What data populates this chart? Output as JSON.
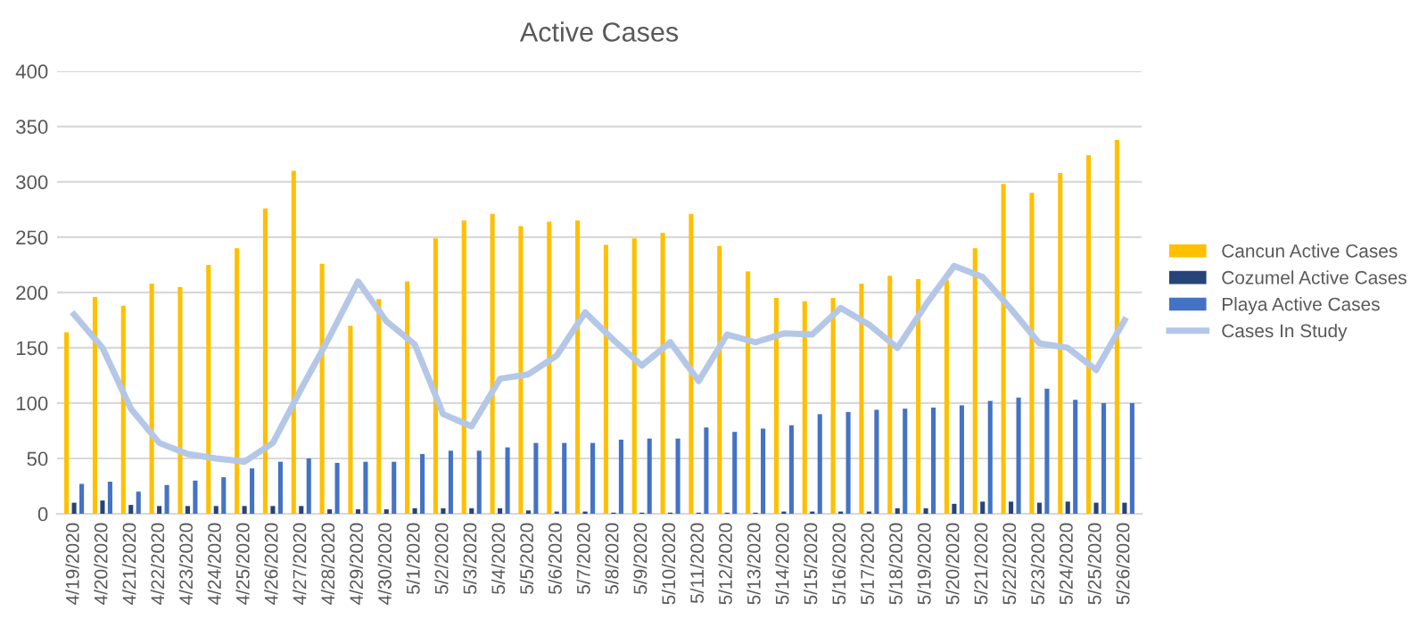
{
  "chart_data": {
    "type": "bar",
    "title": "Active Cases",
    "categories": [
      "4/19/2020",
      "4/20/2020",
      "4/21/2020",
      "4/22/2020",
      "4/23/2020",
      "4/24/2020",
      "4/25/2020",
      "4/26/2020",
      "4/27/2020",
      "4/28/2020",
      "4/29/2020",
      "4/30/2020",
      "5/1/2020",
      "5/2/2020",
      "5/3/2020",
      "5/4/2020",
      "5/5/2020",
      "5/6/2020",
      "5/7/2020",
      "5/8/2020",
      "5/9/2020",
      "5/10/2020",
      "5/11/2020",
      "5/12/2020",
      "5/13/2020",
      "5/14/2020",
      "5/15/2020",
      "5/16/2020",
      "5/17/2020",
      "5/18/2020",
      "5/19/2020",
      "5/20/2020",
      "5/21/2020",
      "5/22/2020",
      "5/23/2020",
      "5/24/2020",
      "5/25/2020",
      "5/26/2020"
    ],
    "series": [
      {
        "name": "Cancun Active Cases",
        "color": "#ffc000",
        "values": [
          164,
          196,
          188,
          208,
          205,
          225,
          240,
          276,
          310,
          226,
          170,
          194,
          210,
          249,
          265,
          271,
          260,
          264,
          265,
          243,
          249,
          254,
          271,
          242,
          219,
          195,
          192,
          195,
          208,
          215,
          212,
          211,
          240,
          298,
          290,
          308,
          324,
          338
        ]
      },
      {
        "name": "Cozumel Active Cases",
        "color": "#264478",
        "values": [
          10,
          12,
          8,
          7,
          7,
          7,
          7,
          7,
          7,
          4,
          4,
          4,
          5,
          5,
          5,
          5,
          3,
          2,
          2,
          1,
          1,
          1,
          1,
          1,
          1,
          2,
          2,
          2,
          2,
          5,
          5,
          9,
          11,
          11,
          10,
          11,
          10,
          10
        ]
      },
      {
        "name": "Playa Active Cases",
        "color": "#4472c4",
        "values": [
          27,
          29,
          20,
          26,
          30,
          33,
          41,
          47,
          50,
          46,
          47,
          47,
          54,
          57,
          57,
          60,
          64,
          64,
          64,
          67,
          68,
          68,
          78,
          74,
          77,
          80,
          90,
          92,
          94,
          95,
          96,
          98,
          102,
          105,
          113,
          103,
          100,
          100
        ]
      },
      {
        "name": "Cases In Study",
        "type": "line",
        "color": "#b4c7e7",
        "values": [
          180,
          150,
          95,
          64,
          54,
          50,
          47,
          64,
          113,
          160,
          210,
          174,
          153,
          90,
          79,
          122,
          126,
          143,
          182,
          157,
          134,
          155,
          120,
          162,
          155,
          163,
          162,
          186,
          171,
          150,
          189,
          224,
          214,
          185,
          154,
          150,
          130,
          175
        ]
      }
    ],
    "ylim": [
      0,
      400
    ],
    "yticks": [
      0,
      50,
      100,
      150,
      200,
      250,
      300,
      350,
      400
    ],
    "grid": "y",
    "legend": "right",
    "marker": "none",
    "line_style": "solid"
  }
}
